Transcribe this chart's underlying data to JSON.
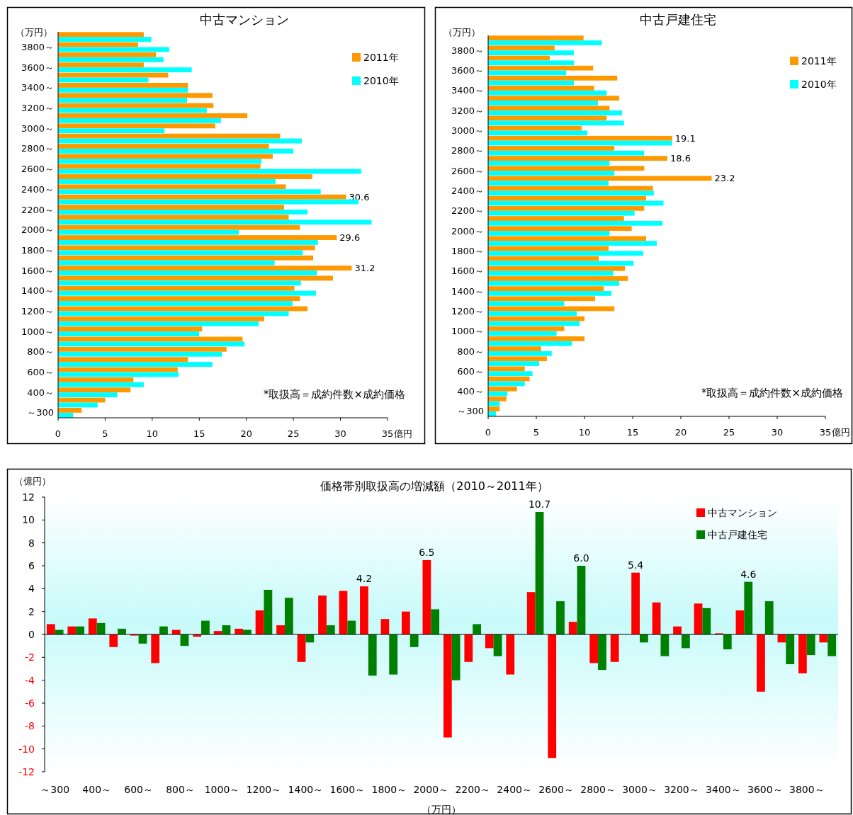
{
  "chart_data": [
    {
      "type": "bar",
      "title": "中古マンション",
      "orientation": "horizontal",
      "xlabel": "億円",
      "ylabel": "（万円）",
      "legend": "top right",
      "annotations": [
        "*取扱高＝成約件数×成約価格"
      ],
      "categories": [
        null,
        "3800～",
        null,
        "3600～",
        null,
        "3400～",
        null,
        "3200～",
        null,
        "3000～",
        null,
        "2800～",
        null,
        "2600～",
        null,
        "2400～",
        null,
        "2200～",
        null,
        "2000～",
        null,
        "1800～",
        null,
        "1600～",
        null,
        "1400～",
        null,
        "1200～",
        null,
        "1000～",
        null,
        "800～",
        null,
        "600～",
        null,
        "400～",
        null,
        "～300"
      ],
      "xlim": [
        0,
        35
      ],
      "xticks": [
        0,
        5,
        10,
        15,
        20,
        25,
        30,
        35
      ],
      "series": [
        {
          "name": "2011年",
          "color": "#ff9900",
          "values": [
            9.1,
            8.5,
            10.4,
            9.1,
            11.7,
            13.8,
            16.4,
            16.5,
            20.1,
            16.7,
            23.6,
            22.4,
            22.8,
            21.5,
            27.0,
            24.2,
            30.6,
            24.0,
            24.5,
            25.7,
            29.6,
            27.3,
            27.1,
            31.2,
            29.2,
            25.1,
            25.7,
            26.5,
            21.9,
            15.3,
            19.6,
            17.9,
            13.8,
            12.7,
            8.0,
            7.7,
            5.0,
            2.5
          ],
          "value_labels": [
            null,
            null,
            null,
            null,
            null,
            null,
            null,
            null,
            null,
            null,
            null,
            null,
            null,
            null,
            null,
            null,
            "30.6",
            null,
            null,
            null,
            "29.6",
            null,
            null,
            "31.2",
            null,
            null,
            null,
            null,
            null,
            null,
            null,
            null,
            null,
            null,
            null,
            null,
            null,
            null
          ]
        },
        {
          "name": "2010年",
          "color": "#00ffff",
          "values": [
            9.9,
            11.8,
            11.2,
            14.2,
            9.6,
            13.8,
            13.7,
            15.8,
            17.3,
            11.3,
            25.9,
            25.0,
            21.6,
            32.2,
            23.1,
            27.9,
            31.9,
            26.5,
            33.3,
            19.2,
            27.6,
            26.0,
            23.0,
            27.5,
            25.8,
            27.4,
            24.9,
            24.5,
            21.3,
            15.0,
            19.8,
            17.4,
            16.4,
            12.8,
            9.1,
            6.3,
            4.2,
            1.6
          ]
        }
      ]
    },
    {
      "type": "bar",
      "title": "中古戸建住宅",
      "orientation": "horizontal",
      "xlabel": "億円",
      "ylabel": "（万円）",
      "legend": "top right",
      "annotations": [
        "*取扱高＝成約件数×成約価格"
      ],
      "categories": [
        null,
        "3800～",
        null,
        "3600～",
        null,
        "3400～",
        null,
        "3200～",
        null,
        "3000～",
        null,
        "2800～",
        null,
        "2600～",
        null,
        "2400～",
        null,
        "2200～",
        null,
        "2000～",
        null,
        "1800～",
        null,
        "1600～",
        null,
        "1400～",
        null,
        "1200～",
        null,
        "1000～",
        null,
        "800～",
        null,
        "600～",
        null,
        "400～",
        null,
        "～300"
      ],
      "xlim": [
        0,
        35
      ],
      "xticks": [
        0,
        5,
        10,
        15,
        20,
        25,
        30,
        35
      ],
      "series": [
        {
          "name": "2011年",
          "color": "#ff9900",
          "values": [
            9.9,
            6.9,
            6.4,
            10.9,
            13.4,
            11.0,
            13.6,
            12.6,
            12.3,
            9.7,
            19.1,
            13.1,
            18.6,
            16.2,
            23.2,
            17.1,
            16.4,
            16.2,
            14.1,
            14.9,
            16.4,
            12.5,
            11.5,
            14.2,
            14.5,
            12.0,
            11.1,
            13.1,
            10.0,
            7.9,
            10.0,
            5.5,
            6.1,
            3.8,
            4.3,
            3.0,
            1.9,
            1.2
          ],
          "value_labels": [
            null,
            null,
            null,
            null,
            null,
            null,
            null,
            null,
            null,
            null,
            "19.1",
            null,
            "18.6",
            null,
            "23.2",
            null,
            null,
            null,
            null,
            null,
            null,
            null,
            null,
            null,
            null,
            null,
            null,
            null,
            null,
            null,
            null,
            null,
            null,
            null,
            null,
            null,
            null,
            null
          ]
        },
        {
          "name": "2010年",
          "color": "#00ffff",
          "values": [
            11.8,
            8.9,
            8.9,
            8.1,
            8.9,
            12.3,
            11.4,
            13.9,
            14.1,
            10.3,
            19.1,
            16.2,
            12.6,
            13.1,
            12.5,
            17.2,
            18.2,
            15.2,
            18.1,
            12.6,
            17.5,
            16.1,
            15.1,
            13.0,
            13.6,
            12.8,
            7.9,
            9.2,
            9.5,
            7.1,
            8.7,
            6.6,
            5.3,
            4.6,
            3.8,
            2.0,
            1.2,
            0.8
          ]
        }
      ]
    },
    {
      "type": "bar",
      "title": "価格帯別取扱高の増減額（2010～2011年）",
      "xlabel": "（万円）",
      "ylabel": "（億円）",
      "legend": "top right",
      "categories": [
        "～300",
        null,
        "400～",
        null,
        "600～",
        null,
        "800～",
        null,
        "1000～",
        null,
        "1200～",
        null,
        "1400～",
        null,
        "1600～",
        null,
        "1800～",
        null,
        "2000～",
        null,
        "2200～",
        null,
        "2400～",
        null,
        "2600～",
        null,
        "2800～",
        null,
        "3000～",
        null,
        "3200～",
        null,
        "3400～",
        null,
        "3600～",
        null,
        "3800～",
        null
      ],
      "ylim": [
        -12,
        12
      ],
      "yticks": [
        -12,
        -10,
        -8,
        -6,
        -4,
        -2,
        0,
        2,
        4,
        6,
        8,
        10,
        12
      ],
      "series": [
        {
          "name": "中古マンション",
          "color": "#ff0000",
          "values": [
            0.9,
            0.7,
            1.4,
            -1.1,
            -0.1,
            -2.5,
            0.4,
            -0.2,
            0.3,
            0.5,
            2.1,
            0.8,
            -2.4,
            3.4,
            3.8,
            4.2,
            1.35,
            2.0,
            6.5,
            -9.0,
            -2.4,
            -1.2,
            -3.5,
            3.7,
            -10.8,
            1.1,
            -2.5,
            -2.4,
            5.4,
            2.8,
            0.7,
            2.7,
            0.1,
            2.1,
            -5.0,
            -0.7,
            -3.4,
            -0.7
          ],
          "value_labels": [
            null,
            null,
            null,
            null,
            null,
            null,
            null,
            null,
            null,
            null,
            null,
            null,
            null,
            null,
            null,
            "4.2",
            null,
            null,
            "6.5",
            null,
            null,
            null,
            null,
            null,
            null,
            null,
            null,
            null,
            "5.4",
            null,
            null,
            null,
            null,
            null,
            null,
            null,
            null,
            null
          ]
        },
        {
          "name": "中古戸建住宅",
          "color": "#008000",
          "values": [
            0.4,
            0.7,
            1.0,
            0.5,
            -0.8,
            0.7,
            -1.0,
            1.2,
            0.8,
            0.4,
            3.9,
            3.2,
            -0.7,
            0.8,
            1.2,
            -3.6,
            -3.5,
            -1.1,
            2.2,
            -4.0,
            0.9,
            -1.9,
            null,
            10.7,
            2.9,
            6.0,
            -3.1,
            null,
            -0.7,
            -1.9,
            -1.2,
            2.3,
            -1.3,
            4.6,
            2.9,
            -2.6,
            -1.8,
            -1.9
          ],
          "value_labels": [
            null,
            null,
            null,
            null,
            null,
            null,
            null,
            null,
            null,
            null,
            null,
            null,
            null,
            null,
            null,
            null,
            null,
            null,
            null,
            null,
            null,
            null,
            null,
            "10.7",
            null,
            "6.0",
            null,
            null,
            null,
            null,
            null,
            null,
            null,
            "4.6",
            null,
            null,
            null,
            null
          ]
        }
      ]
    }
  ]
}
